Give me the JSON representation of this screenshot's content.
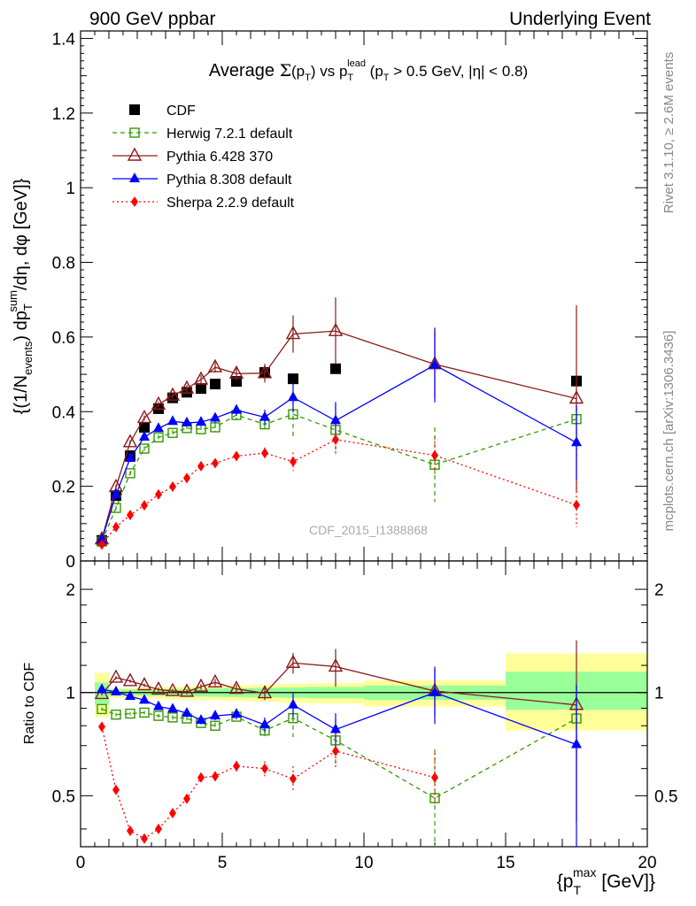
{
  "header": {
    "left": "900 GeV ppbar",
    "right": "Underlying Event"
  },
  "side_labels": {
    "rivet": "Rivet 3.1.10, ≥ 2.6M events",
    "mcplots": "mcplots.cern.ch [arXiv:1306.3436]"
  },
  "watermark": "CDF_2015_I1388868",
  "chart_data": [
    {
      "type": "scatter",
      "title": "Average Σ(pT) vs pT lead (pT > 0.5 GeV, |η| < 0.8)",
      "ylabel": "{(1/N events) dpT sum/dη, dφ [GeV]}",
      "xlim": [
        0,
        20
      ],
      "ylim": [
        0,
        1.42
      ],
      "yticks": [
        "0",
        "0.2",
        "0.4",
        "0.6",
        "0.8",
        "1",
        "1.2",
        "1.4"
      ],
      "legend_position": "top-left",
      "series": [
        {
          "name": "CDF",
          "color": "#000000",
          "marker": "square-filled",
          "x": [
            0.75,
            1.25,
            1.75,
            2.25,
            2.75,
            3.25,
            3.75,
            4.25,
            4.75,
            5.5,
            6.5,
            7.5,
            9.0,
            17.5
          ],
          "y": [
            0.055,
            0.175,
            0.282,
            0.358,
            0.408,
            0.437,
            0.452,
            0.462,
            0.474,
            0.481,
            0.505,
            0.488,
            0.515,
            0.482
          ]
        },
        {
          "name": "Herwig 7.2.1 default",
          "color": "#339900",
          "marker": "square-open",
          "x": [
            0.75,
            1.25,
            1.75,
            2.25,
            2.75,
            3.25,
            3.75,
            4.25,
            4.75,
            5.5,
            6.5,
            7.5,
            9.0,
            12.5,
            17.5
          ],
          "y": [
            0.052,
            0.142,
            0.235,
            0.301,
            0.331,
            0.343,
            0.356,
            0.353,
            0.358,
            0.391,
            0.366,
            0.393,
            0.351,
            0.258,
            0.38
          ],
          "err": [
            0.005,
            0.006,
            0.006,
            0.006,
            0.007,
            0.008,
            0.009,
            0.01,
            0.012,
            0.014,
            0.02,
            0.06,
            0.065,
            0.1,
            0.1
          ]
        },
        {
          "name": "Pythia 6.428 370",
          "color": "#8b1a1a",
          "marker": "triangle-open",
          "x": [
            0.75,
            1.25,
            1.75,
            2.25,
            2.75,
            3.25,
            3.75,
            4.25,
            4.75,
            5.5,
            6.5,
            7.5,
            9.0,
            12.5,
            17.5
          ],
          "y": [
            0.058,
            0.198,
            0.318,
            0.383,
            0.419,
            0.443,
            0.462,
            0.486,
            0.519,
            0.502,
            0.503,
            0.608,
            0.616,
            0.527,
            0.435
          ],
          "err": [
            0.005,
            0.006,
            0.006,
            0.007,
            0.008,
            0.009,
            0.01,
            0.012,
            0.014,
            0.018,
            0.025,
            0.05,
            0.09,
            0.09,
            0.25
          ]
        },
        {
          "name": "Pythia 8.308 default",
          "color": "#0000ff",
          "marker": "triangle-filled",
          "x": [
            0.75,
            1.25,
            1.75,
            2.25,
            2.75,
            3.25,
            3.75,
            4.25,
            4.75,
            5.5,
            6.5,
            7.5,
            9.0,
            12.5,
            17.5
          ],
          "y": [
            0.057,
            0.178,
            0.275,
            0.332,
            0.355,
            0.374,
            0.37,
            0.372,
            0.383,
            0.404,
            0.385,
            0.438,
            0.376,
            0.525,
            0.317
          ],
          "err": [
            0.005,
            0.006,
            0.006,
            0.006,
            0.007,
            0.008,
            0.009,
            0.01,
            0.012,
            0.015,
            0.02,
            0.04,
            0.05,
            0.1,
            0.1
          ]
        },
        {
          "name": "Sherpa 2.2.9 default",
          "color": "#ff0000",
          "marker": "diamond-filled",
          "x": [
            0.75,
            1.25,
            1.75,
            2.25,
            2.75,
            3.25,
            3.75,
            4.25,
            4.75,
            5.5,
            6.5,
            7.5,
            9.0,
            12.5,
            17.5
          ],
          "y": [
            0.044,
            0.091,
            0.123,
            0.149,
            0.178,
            0.199,
            0.222,
            0.254,
            0.262,
            0.281,
            0.289,
            0.266,
            0.325,
            0.283,
            0.15
          ],
          "err": [
            0.004,
            0.004,
            0.005,
            0.005,
            0.006,
            0.007,
            0.007,
            0.008,
            0.009,
            0.01,
            0.015,
            0.025,
            0.04,
            0.05,
            0.06
          ]
        }
      ]
    },
    {
      "type": "scatter",
      "ylabel": "Ratio to CDF",
      "xlabel": "{pT max [GeV]}",
      "xlim": [
        0,
        20
      ],
      "ylim": [
        0.355,
        2.42
      ],
      "yscale": "log",
      "yticks": [
        "0.5",
        "1",
        "2"
      ],
      "xticks": [
        "0",
        "5",
        "10",
        "15",
        "20"
      ],
      "bands": [
        {
          "x0": 0.5,
          "x1": 1.0,
          "yellow": [
            0.848,
            1.14
          ],
          "green": [
            0.92,
            1.07
          ]
        },
        {
          "x0": 1.0,
          "x1": 1.5,
          "yellow": [
            0.965,
            1.03
          ],
          "green": [
            0.98,
            1.02
          ]
        },
        {
          "x0": 1.5,
          "x1": 2.0,
          "yellow": [
            0.965,
            1.03
          ],
          "green": [
            0.98,
            1.02
          ]
        },
        {
          "x0": 2.0,
          "x1": 2.5,
          "yellow": [
            0.96,
            1.035
          ],
          "green": [
            0.98,
            1.02
          ]
        },
        {
          "x0": 2.5,
          "x1": 3.0,
          "yellow": [
            0.96,
            1.035
          ],
          "green": [
            0.978,
            1.022
          ]
        },
        {
          "x0": 3.0,
          "x1": 3.5,
          "yellow": [
            0.955,
            1.04
          ],
          "green": [
            0.976,
            1.024
          ]
        },
        {
          "x0": 3.5,
          "x1": 4.0,
          "yellow": [
            0.955,
            1.04
          ],
          "green": [
            0.975,
            1.025
          ]
        },
        {
          "x0": 4.0,
          "x1": 4.5,
          "yellow": [
            0.95,
            1.045
          ],
          "green": [
            0.973,
            1.027
          ]
        },
        {
          "x0": 4.5,
          "x1": 5.0,
          "yellow": [
            0.95,
            1.045
          ],
          "green": [
            0.972,
            1.028
          ]
        },
        {
          "x0": 5.0,
          "x1": 6.0,
          "yellow": [
            0.945,
            1.05
          ],
          "green": [
            0.97,
            1.03
          ]
        },
        {
          "x0": 6.0,
          "x1": 7.0,
          "yellow": [
            0.94,
            1.055
          ],
          "green": [
            0.968,
            1.032
          ]
        },
        {
          "x0": 7.0,
          "x1": 8.0,
          "yellow": [
            0.935,
            1.06
          ],
          "green": [
            0.965,
            1.035
          ]
        },
        {
          "x0": 8.0,
          "x1": 10.0,
          "yellow": [
            0.93,
            1.065
          ],
          "green": [
            0.962,
            1.038
          ]
        },
        {
          "x0": 10.0,
          "x1": 15.0,
          "yellow": [
            0.91,
            1.085
          ],
          "green": [
            0.952,
            1.048
          ]
        },
        {
          "x0": 15.0,
          "x1": 20.0,
          "yellow": [
            0.775,
            1.3
          ],
          "green": [
            0.89,
            1.15
          ]
        }
      ],
      "series": [
        {
          "name": "Herwig 7.2.1 default",
          "color": "#339900",
          "marker": "square-open",
          "x": [
            0.75,
            1.25,
            1.75,
            2.25,
            2.75,
            3.25,
            3.75,
            4.25,
            4.75,
            5.5,
            6.5,
            7.5,
            9.0,
            12.5,
            17.5
          ],
          "y": [
            0.895,
            0.862,
            0.868,
            0.874,
            0.855,
            0.846,
            0.84,
            0.815,
            0.8,
            0.85,
            0.775,
            0.842,
            0.725,
            0.492,
            0.84
          ],
          "err": [
            0.01,
            0.01,
            0.01,
            0.01,
            0.01,
            0.012,
            0.014,
            0.016,
            0.018,
            0.022,
            0.035,
            0.1,
            0.11,
            0.19,
            0.2
          ]
        },
        {
          "name": "Pythia 6.428 370",
          "color": "#8b1a1a",
          "marker": "triangle-open",
          "x": [
            0.75,
            1.25,
            1.75,
            2.25,
            2.75,
            3.25,
            3.75,
            4.25,
            4.75,
            5.5,
            6.5,
            7.5,
            9.0,
            12.5,
            17.5
          ],
          "y": [
            0.99,
            1.105,
            1.08,
            1.05,
            1.02,
            1.01,
            1.005,
            1.04,
            1.07,
            1.025,
            0.995,
            1.22,
            1.19,
            1.01,
            0.92
          ],
          "err": [
            0.01,
            0.012,
            0.012,
            0.012,
            0.014,
            0.016,
            0.018,
            0.02,
            0.025,
            0.03,
            0.045,
            0.085,
            0.15,
            0.16,
            0.5
          ]
        },
        {
          "name": "Pythia 8.308 default",
          "color": "#0000ff",
          "marker": "triangle-filled",
          "x": [
            0.75,
            1.25,
            1.75,
            2.25,
            2.75,
            3.25,
            3.75,
            4.25,
            4.75,
            5.5,
            6.5,
            7.5,
            9.0,
            12.5,
            17.5
          ],
          "y": [
            1.02,
            1.005,
            0.975,
            0.95,
            0.91,
            0.895,
            0.87,
            0.83,
            0.855,
            0.865,
            0.805,
            0.92,
            0.78,
            1.0,
            0.705
          ],
          "err": [
            0.01,
            0.012,
            0.012,
            0.012,
            0.014,
            0.016,
            0.018,
            0.02,
            0.025,
            0.03,
            0.04,
            0.075,
            0.09,
            0.19,
            0.35
          ]
        },
        {
          "name": "Sherpa 2.2.9 default",
          "color": "#ff0000",
          "marker": "diamond-filled",
          "x": [
            0.75,
            1.25,
            1.75,
            2.25,
            2.75,
            3.25,
            3.75,
            4.25,
            4.75,
            5.5,
            6.5,
            7.5,
            9.0,
            12.5
          ],
          "y": [
            0.795,
            0.52,
            0.395,
            0.375,
            0.4,
            0.445,
            0.49,
            0.565,
            0.57,
            0.61,
            0.6,
            0.56,
            0.675,
            0.565
          ],
          "err": [
            0.01,
            0.01,
            0.01,
            0.01,
            0.01,
            0.012,
            0.014,
            0.016,
            0.018,
            0.022,
            0.03,
            0.05,
            0.08,
            0.1
          ]
        }
      ]
    }
  ]
}
